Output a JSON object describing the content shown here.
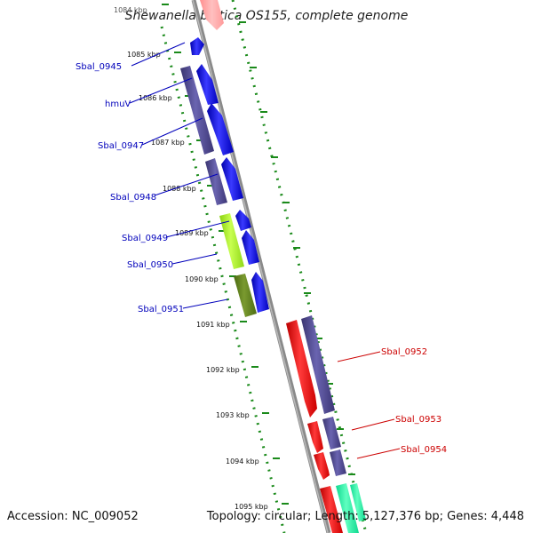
{
  "title": "Shewanella baltica OS155, complete genome",
  "footer": {
    "accession": "Accession: NC_009052",
    "summary": "Topology: circular; Length: 5,127,376 bp; Genes: 4,448"
  },
  "ticks": [
    "1084 kbp",
    "1085 kbp",
    "1086 kbp",
    "1087 kbp",
    "1088 kbp",
    "1089 kbp",
    "1090 kbp",
    "1091 kbp",
    "1092 kbp",
    "1093 kbp",
    "1094 kbp",
    "1095 kbp"
  ],
  "gene_labels": [
    "Sbal_0945",
    "hmuV",
    "Sbal_0947",
    "Sbal_0948",
    "Sbal_0949",
    "Sbal_0950",
    "Sbal_0951",
    "Sbal_0952",
    "Sbal_0953",
    "Sbal_0954"
  ],
  "colors": {
    "forward_gene": "#0000ee",
    "cog_purple": "#4b4588",
    "reverse_gene": "#ee0000",
    "cog_green_light": "#a8f020",
    "cog_green_dark": "#5a7a18",
    "cog_teal": "#20f0a0",
    "axis": "#888888",
    "dotted_track": "#1a8a1a",
    "label_blue": "#0000bb",
    "label_red": "#cc0000"
  }
}
